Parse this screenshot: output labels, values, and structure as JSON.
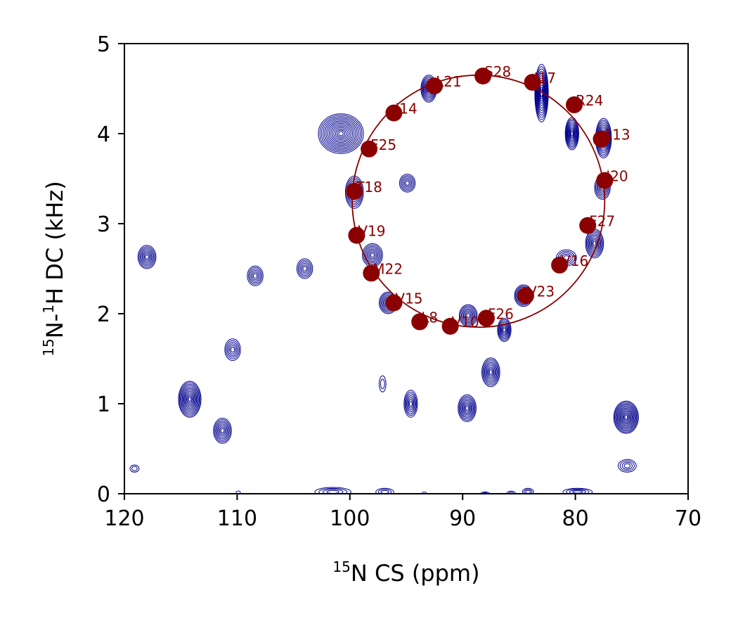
{
  "chart_data": {
    "type": "scatter",
    "title": "",
    "xlabel_sup": "15",
    "xlabel_text": "N CS (ppm)",
    "ylabel_sup1": "15",
    "ylabel_mid": "N-",
    "ylabel_sup2": "1",
    "ylabel_end": "H DC (kHz)",
    "xlim": [
      120,
      70
    ],
    "ylim": [
      0,
      5
    ],
    "xticks": [
      "120",
      "110",
      "100",
      "90",
      "80",
      "70"
    ],
    "yticks": [
      "0",
      "1",
      "2",
      "3",
      "4",
      "5"
    ],
    "grid": false,
    "colors": {
      "contour": "#00008b",
      "fit": "#8b0000",
      "points": "#8b0000"
    },
    "contour_peaks": [
      {
        "x": 100.8,
        "y": 4.0,
        "rx": 2.0,
        "ry": 0.22,
        "n": 14
      },
      {
        "x": 93.0,
        "y": 4.5,
        "rx": 0.7,
        "ry": 0.15,
        "n": 9
      },
      {
        "x": 83.0,
        "y": 4.45,
        "rx": 0.6,
        "ry": 0.32,
        "n": 12
      },
      {
        "x": 80.3,
        "y": 4.0,
        "rx": 0.6,
        "ry": 0.18,
        "n": 10
      },
      {
        "x": 77.5,
        "y": 3.95,
        "rx": 0.7,
        "ry": 0.22,
        "n": 11
      },
      {
        "x": 99.6,
        "y": 3.35,
        "rx": 0.8,
        "ry": 0.18,
        "n": 9
      },
      {
        "x": 94.9,
        "y": 3.45,
        "rx": 0.7,
        "ry": 0.1,
        "n": 6
      },
      {
        "x": 77.6,
        "y": 3.4,
        "rx": 0.7,
        "ry": 0.13,
        "n": 7
      },
      {
        "x": 78.3,
        "y": 2.78,
        "rx": 0.8,
        "ry": 0.16,
        "n": 9
      },
      {
        "x": 80.8,
        "y": 2.62,
        "rx": 0.9,
        "ry": 0.09,
        "n": 5
      },
      {
        "x": 98.0,
        "y": 2.65,
        "rx": 0.9,
        "ry": 0.13,
        "n": 8
      },
      {
        "x": 118.0,
        "y": 2.63,
        "rx": 0.8,
        "ry": 0.13,
        "n": 8
      },
      {
        "x": 108.4,
        "y": 2.42,
        "rx": 0.7,
        "ry": 0.11,
        "n": 6
      },
      {
        "x": 104.0,
        "y": 2.5,
        "rx": 0.7,
        "ry": 0.11,
        "n": 6
      },
      {
        "x": 96.6,
        "y": 2.12,
        "rx": 0.8,
        "ry": 0.12,
        "n": 8
      },
      {
        "x": 89.5,
        "y": 1.98,
        "rx": 0.8,
        "ry": 0.12,
        "n": 8
      },
      {
        "x": 84.6,
        "y": 2.2,
        "rx": 0.8,
        "ry": 0.12,
        "n": 9
      },
      {
        "x": 86.3,
        "y": 1.82,
        "rx": 0.6,
        "ry": 0.13,
        "n": 8
      },
      {
        "x": 110.4,
        "y": 1.6,
        "rx": 0.7,
        "ry": 0.12,
        "n": 6
      },
      {
        "x": 87.5,
        "y": 1.35,
        "rx": 0.8,
        "ry": 0.16,
        "n": 9
      },
      {
        "x": 97.1,
        "y": 1.22,
        "rx": 0.3,
        "ry": 0.09,
        "n": 2
      },
      {
        "x": 114.2,
        "y": 1.05,
        "rx": 1.0,
        "ry": 0.2,
        "n": 12
      },
      {
        "x": 94.6,
        "y": 1.0,
        "rx": 0.6,
        "ry": 0.15,
        "n": 7
      },
      {
        "x": 89.6,
        "y": 0.95,
        "rx": 0.8,
        "ry": 0.15,
        "n": 9
      },
      {
        "x": 75.5,
        "y": 0.85,
        "rx": 1.1,
        "ry": 0.18,
        "n": 13
      },
      {
        "x": 111.3,
        "y": 0.7,
        "rx": 0.8,
        "ry": 0.14,
        "n": 8
      },
      {
        "x": 75.4,
        "y": 0.31,
        "rx": 0.8,
        "ry": 0.07,
        "n": 4
      },
      {
        "x": 119.1,
        "y": 0.28,
        "rx": 0.4,
        "ry": 0.04,
        "n": 2
      },
      {
        "x": 101.5,
        "y": 0.02,
        "rx": 1.6,
        "ry": 0.05,
        "n": 4
      },
      {
        "x": 96.9,
        "y": 0.02,
        "rx": 0.8,
        "ry": 0.04,
        "n": 3
      },
      {
        "x": 84.2,
        "y": 0.02,
        "rx": 0.5,
        "ry": 0.04,
        "n": 3
      },
      {
        "x": 79.8,
        "y": 0.02,
        "rx": 1.3,
        "ry": 0.04,
        "n": 4
      },
      {
        "x": 85.7,
        "y": 0.0,
        "rx": 0.4,
        "ry": 0.03,
        "n": 2
      },
      {
        "x": 88.0,
        "y": 0.0,
        "rx": 0.4,
        "ry": 0.02,
        "n": 2
      },
      {
        "x": 109.9,
        "y": 0.01,
        "rx": 0.2,
        "ry": 0.02,
        "n": 1
      },
      {
        "x": 93.4,
        "y": 0.0,
        "rx": 0.2,
        "ry": 0.02,
        "n": 1
      }
    ],
    "fit_wheel": {
      "cx": 88.6,
      "cy": 3.25,
      "rx": 11.2,
      "ry": 1.4
    },
    "points": [
      {
        "label": "S28",
        "x": 88.2,
        "y": 4.64
      },
      {
        "label": "I17",
        "x": 83.8,
        "y": 4.57
      },
      {
        "label": "L21",
        "x": 92.5,
        "y": 4.53
      },
      {
        "label": "R24",
        "x": 80.1,
        "y": 4.32
      },
      {
        "label": "I14",
        "x": 96.1,
        "y": 4.23
      },
      {
        "label": "A13",
        "x": 77.7,
        "y": 3.94
      },
      {
        "label": "F25",
        "x": 98.3,
        "y": 3.83
      },
      {
        "label": "I20",
        "x": 77.4,
        "y": 3.48
      },
      {
        "label": "T18",
        "x": 99.6,
        "y": 3.36
      },
      {
        "label": "F27",
        "x": 78.9,
        "y": 2.98
      },
      {
        "label": "V19",
        "x": 99.4,
        "y": 2.87
      },
      {
        "label": "V16",
        "x": 81.4,
        "y": 2.54
      },
      {
        "label": "M22",
        "x": 98.1,
        "y": 2.45
      },
      {
        "label": "V23",
        "x": 84.4,
        "y": 2.2
      },
      {
        "label": "V15",
        "x": 96.1,
        "y": 2.12
      },
      {
        "label": "F26",
        "x": 87.9,
        "y": 1.95
      },
      {
        "label": "L8",
        "x": 93.8,
        "y": 1.91
      },
      {
        "label": "V10",
        "x": 91.1,
        "y": 1.86
      }
    ]
  }
}
